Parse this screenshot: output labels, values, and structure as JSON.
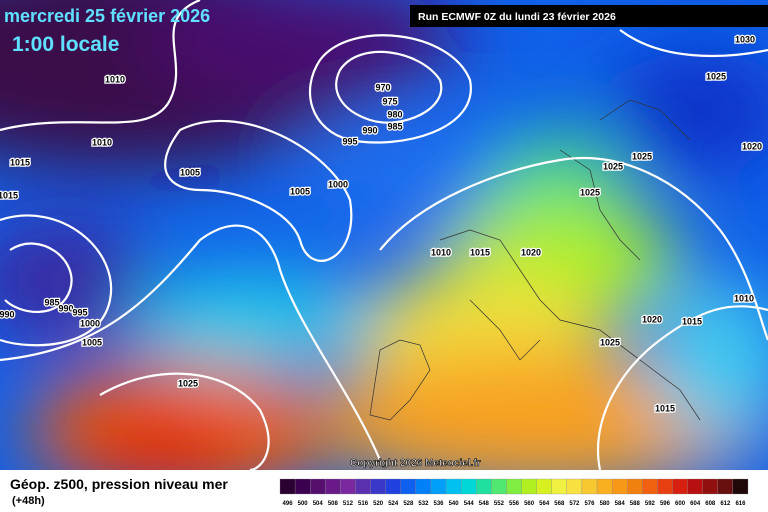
{
  "header": {
    "date": "mercredi 25 février 2026",
    "time": "1:00 locale",
    "run": "Run ECMWF 0Z du lundi 23 février 2026"
  },
  "map": {
    "copyright": "Copyright 2026 Meteociel.fr",
    "isobar_labels": [
      "1010",
      "1010",
      "1015",
      "1015",
      "1005",
      "1005",
      "1000",
      "995",
      "990",
      "985",
      "980",
      "975",
      "970",
      "1030",
      "1025",
      "1020",
      "1025",
      "1025",
      "1025",
      "1010",
      "1015",
      "1020",
      "985",
      "990",
      "995",
      "990",
      "1000",
      "1005",
      "1025",
      "1020",
      "1015",
      "1010",
      "1025",
      "1015"
    ]
  },
  "footer": {
    "title": "Géop. z500, pression niveau mer",
    "lead": "(+48h)",
    "scale": {
      "labels": [
        "496",
        "500",
        "504",
        "508",
        "512",
        "516",
        "520",
        "524",
        "528",
        "532",
        "536",
        "540",
        "544",
        "548",
        "552",
        "556",
        "560",
        "564",
        "568",
        "572",
        "576",
        "580",
        "584",
        "588",
        "592",
        "596",
        "600",
        "604",
        "608",
        "612",
        "616"
      ],
      "colors": [
        "#2a0030",
        "#3c0050",
        "#55106e",
        "#6a1a88",
        "#7a28a0",
        "#5a30b0",
        "#3a38c8",
        "#2040e0",
        "#1060f0",
        "#0080f8",
        "#00a0f8",
        "#00c0f0",
        "#00d8d8",
        "#20e0a0",
        "#50e870",
        "#80ee40",
        "#b0f020",
        "#d8f020",
        "#f0f040",
        "#f8e040",
        "#f8c830",
        "#f8b020",
        "#f89818",
        "#f08010",
        "#f06010",
        "#e84010",
        "#d82010",
        "#b81010",
        "#901010",
        "#681010",
        "#200808"
      ]
    }
  }
}
